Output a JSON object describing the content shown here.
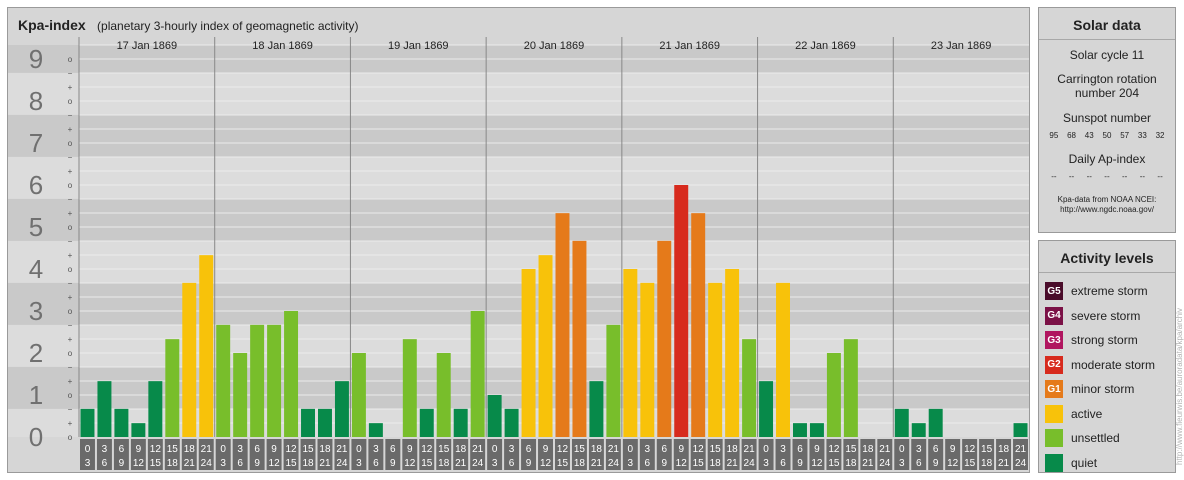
{
  "header": {
    "title": "Kpa-index",
    "subtitle": "(planetary 3-hourly index of geomagnetic activity)"
  },
  "solar": {
    "title": "Solar data",
    "cycle": "Solar cycle 11",
    "rotation_l1": "Carrington rotation",
    "rotation_l2": "number 204",
    "sunspot_title": "Sunspot number",
    "sunspots": [
      "95",
      "68",
      "43",
      "50",
      "57",
      "33",
      "32"
    ],
    "ap_title": "Daily Ap-index",
    "ap_values": [
      "--",
      "--",
      "--",
      "--",
      "--",
      "--",
      "--"
    ],
    "note_l1": "Kpa-data from NOAA NCEI:",
    "note_l2": "http://www.ngdc.noaa.gov/"
  },
  "legend": {
    "title": "Activity levels",
    "items": [
      {
        "badge": "G5",
        "label": "extreme storm",
        "color": "#4a0c2a"
      },
      {
        "badge": "G4",
        "label": "severe storm",
        "color": "#7b1146"
      },
      {
        "badge": "G3",
        "label": "strong storm",
        "color": "#b0155f"
      },
      {
        "badge": "G2",
        "label": "moderate storm",
        "color": "#d72a1d"
      },
      {
        "badge": "G1",
        "label": "minor storm",
        "color": "#e57a1a"
      },
      {
        "badge": "",
        "label": "active",
        "color": "#f8c20a"
      },
      {
        "badge": "",
        "label": "unsettled",
        "color": "#78be2b"
      },
      {
        "badge": "",
        "label": "quiet",
        "color": "#078a4a"
      }
    ]
  },
  "watermark": "http://www.fieurwis.be/auroradata/kpa/archiv",
  "chart_data": {
    "type": "bar",
    "title": "Kpa-index",
    "subtitle": "(planetary 3-hourly index of geomagnetic activity)",
    "days": [
      "17 Jan 1869",
      "18 Jan 1869",
      "19 Jan 1869",
      "20 Jan 1869",
      "21 Jan 1869",
      "22 Jan 1869",
      "23 Jan 1869"
    ],
    "interval_start": [
      "0",
      "3",
      "6",
      "9",
      "12",
      "15",
      "18",
      "21"
    ],
    "interval_end": [
      "3",
      "6",
      "9",
      "12",
      "15",
      "18",
      "21",
      "24"
    ],
    "y_ticks": [
      "0",
      "1",
      "2",
      "3",
      "4",
      "5",
      "6",
      "7",
      "8",
      "9"
    ],
    "minor_ticks": [
      "o",
      "+",
      "−"
    ],
    "ylim": [
      0,
      9.33
    ],
    "values": [
      0.67,
      1.33,
      0.67,
      0.33,
      1.33,
      2.33,
      3.67,
      4.33,
      2.67,
      2.0,
      2.67,
      2.67,
      3.0,
      0.67,
      0.67,
      1.33,
      2.0,
      0.33,
      0.0,
      2.33,
      0.67,
      2.0,
      0.67,
      3.0,
      1.0,
      0.67,
      4.0,
      4.33,
      5.33,
      4.67,
      1.33,
      2.67,
      4.0,
      3.67,
      4.67,
      6.0,
      5.33,
      3.67,
      4.0,
      2.33,
      1.33,
      3.67,
      0.33,
      0.33,
      2.0,
      2.33,
      0.0,
      0.0,
      0.67,
      0.33,
      0.67,
      0.0,
      0.0,
      0.0,
      0.0,
      0.33
    ],
    "level_colors": {
      "quiet": "#078a4a",
      "unsettled": "#78be2b",
      "active": "#f8c20a",
      "G1": "#e57a1a",
      "G2": "#d72a1d"
    }
  }
}
